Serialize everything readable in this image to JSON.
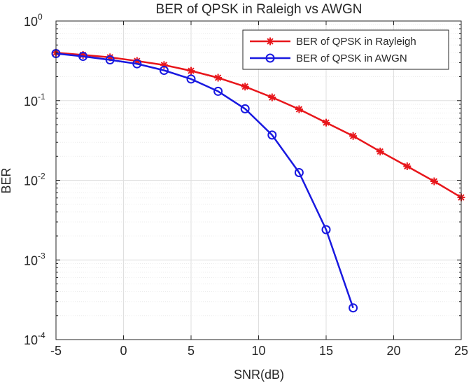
{
  "chart_data": {
    "type": "line",
    "title": "BER of QPSK in Raleigh vs AWGN",
    "xlabel": "SNR(dB)",
    "ylabel": "BER",
    "xlim": [
      -5,
      25
    ],
    "ylim": [
      0.0001,
      1
    ],
    "y_scale": "log",
    "grid": true,
    "minor_grid": true,
    "legend_position": "top-right",
    "x_ticks": [
      {
        "value": -5,
        "label": "-5"
      },
      {
        "value": 0,
        "label": "0"
      },
      {
        "value": 5,
        "label": "5"
      },
      {
        "value": 10,
        "label": "10"
      },
      {
        "value": 15,
        "label": "15"
      },
      {
        "value": 20,
        "label": "20"
      },
      {
        "value": 25,
        "label": "25"
      }
    ],
    "y_ticks": [
      {
        "value": 1,
        "base": "10",
        "exp": "0"
      },
      {
        "value": 0.1,
        "base": "10",
        "exp": "-1"
      },
      {
        "value": 0.01,
        "base": "10",
        "exp": "-2"
      },
      {
        "value": 0.001,
        "base": "10",
        "exp": "-3"
      },
      {
        "value": 0.0001,
        "base": "10",
        "exp": "-4"
      }
    ],
    "series": [
      {
        "name": "BER of QPSK in Rayleigh",
        "color": "#e8161b",
        "marker": "asterisk",
        "x": [
          -5,
          -3,
          -1,
          1,
          3,
          5,
          7,
          9,
          11,
          13,
          15,
          17,
          19,
          21,
          23,
          25
        ],
        "y": [
          0.4,
          0.375,
          0.35,
          0.315,
          0.28,
          0.237,
          0.194,
          0.15,
          0.11,
          0.078,
          0.053,
          0.036,
          0.023,
          0.015,
          0.0097,
          0.0061
        ]
      },
      {
        "name": "BER of QPSK in AWGN",
        "color": "#1919e0",
        "marker": "circle",
        "x": [
          -5,
          -3,
          -1,
          1,
          3,
          5,
          7,
          9,
          11,
          13,
          15,
          17
        ],
        "y": [
          0.39,
          0.36,
          0.325,
          0.29,
          0.24,
          0.187,
          0.131,
          0.079,
          0.037,
          0.0125,
          0.0024,
          0.00025
        ]
      }
    ]
  },
  "style": {
    "axis_color": "#262626",
    "grid_color": "#dfdfdf",
    "minor_grid_color": "#ececec",
    "background": "#ffffff"
  }
}
